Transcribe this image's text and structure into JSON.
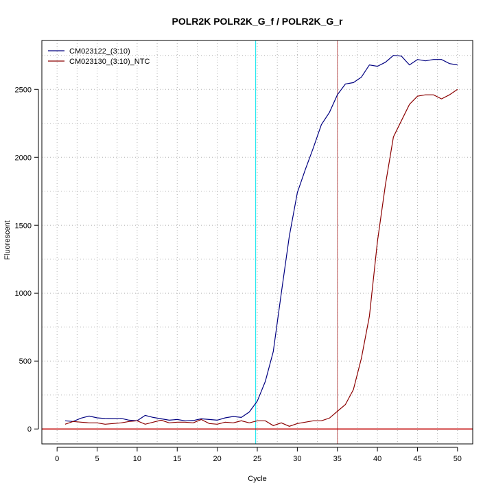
{
  "chart_data": {
    "type": "line",
    "title": "POLR2K  POLR2K_G_f / POLR2K_G_r",
    "xlabel": "Cycle",
    "ylabel": "Fluorescent",
    "xlim": [
      -1.9,
      51.9
    ],
    "ylim": [
      -110,
      2860
    ],
    "x_ticks": [
      0,
      5,
      10,
      15,
      20,
      25,
      30,
      35,
      40,
      45,
      50
    ],
    "x_tick_labels": [
      "0",
      "5",
      "10",
      "15",
      "20",
      "25",
      "30",
      "35",
      "40",
      "45",
      "50"
    ],
    "y_ticks": [
      0,
      500,
      1000,
      1500,
      2000,
      2500
    ],
    "y_tick_labels": [
      "0",
      "500",
      "1000",
      "1500",
      "2000",
      "2500"
    ],
    "grid": true,
    "legend_position": "top-left",
    "threshold_line": {
      "y": 0,
      "color": "#c00000"
    },
    "vertical_lines": [
      {
        "x": 24.8,
        "color": "#00e5ee"
      },
      {
        "x": 35.0,
        "color": "#c06060"
      }
    ],
    "x": [
      1,
      2,
      3,
      4,
      5,
      6,
      7,
      8,
      9,
      10,
      11,
      12,
      13,
      14,
      15,
      16,
      17,
      18,
      19,
      20,
      21,
      22,
      23,
      24,
      25,
      26,
      27,
      28,
      29,
      30,
      31,
      32,
      33,
      34,
      35,
      36,
      37,
      38,
      39,
      40,
      41,
      42,
      43,
      44,
      45,
      46,
      47,
      48,
      49,
      50
    ],
    "series": [
      {
        "name": "CM023122_(3:10)",
        "color": "#000080",
        "values": [
          60,
          55,
          80,
          95,
          82,
          77,
          75,
          78,
          65,
          60,
          100,
          85,
          75,
          65,
          70,
          60,
          62,
          75,
          70,
          65,
          82,
          92,
          85,
          125,
          205,
          350,
          570,
          1000,
          1420,
          1740,
          1910,
          2070,
          2240,
          2330,
          2460,
          2540,
          2550,
          2590,
          2680,
          2670,
          2700,
          2750,
          2745,
          2680,
          2720,
          2710,
          2720,
          2720,
          2690,
          2680
        ]
      },
      {
        "name": "CM023130_(3:10)_NTC",
        "color": "#8b0000",
        "values": [
          35,
          55,
          50,
          45,
          45,
          35,
          40,
          45,
          55,
          60,
          35,
          50,
          65,
          45,
          50,
          50,
          45,
          70,
          40,
          35,
          50,
          45,
          60,
          45,
          60,
          60,
          25,
          45,
          20,
          40,
          50,
          60,
          60,
          80,
          130,
          180,
          290,
          520,
          830,
          1380,
          1800,
          2150,
          2270,
          2390,
          2450,
          2460,
          2460,
          2430,
          2460,
          2500
        ]
      }
    ]
  }
}
